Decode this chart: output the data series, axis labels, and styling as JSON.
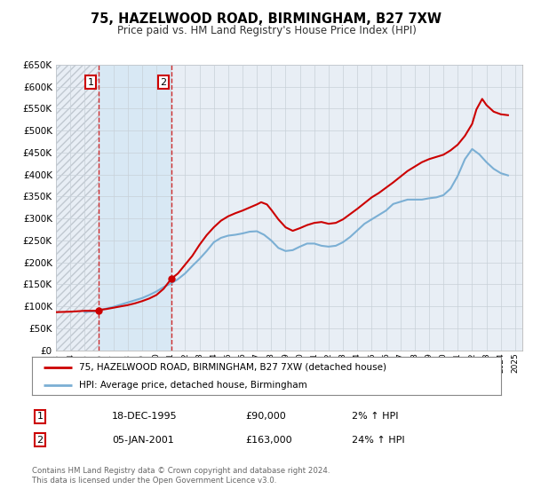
{
  "title": "75, HAZELWOOD ROAD, BIRMINGHAM, B27 7XW",
  "subtitle": "Price paid vs. HM Land Registry's House Price Index (HPI)",
  "property_label": "75, HAZELWOOD ROAD, BIRMINGHAM, B27 7XW (detached house)",
  "hpi_label": "HPI: Average price, detached house, Birmingham",
  "sale1_date": "18-DEC-1995",
  "sale1_price": "£90,000",
  "sale1_hpi": "2% ↑ HPI",
  "sale2_date": "05-JAN-2001",
  "sale2_price": "£163,000",
  "sale2_hpi": "24% ↑ HPI",
  "footnote1": "Contains HM Land Registry data © Crown copyright and database right 2024.",
  "footnote2": "This data is licensed under the Open Government Licence v3.0.",
  "property_color": "#cc0000",
  "hpi_color": "#7bafd4",
  "sale_marker_color": "#cc0000",
  "background_color": "#ffffff",
  "plot_bg_color": "#e8eef5",
  "grid_color": "#c8d0d8",
  "shaded_region_color": "#d8e8f4",
  "hatch_color": "#c0c8d0",
  "ylim": [
    0,
    650000
  ],
  "xlim_start": 1993.0,
  "xlim_end": 2025.5,
  "sale1_x": 1995.96,
  "sale1_y": 90000,
  "sale2_x": 2001.04,
  "sale2_y": 163000,
  "property_x": [
    1993.0,
    1993.5,
    1994.0,
    1994.5,
    1995.0,
    1995.5,
    1995.96,
    1996.0,
    1996.5,
    1997.0,
    1997.5,
    1998.0,
    1998.5,
    1999.0,
    1999.5,
    2000.0,
    2000.5,
    2001.04,
    2001.5,
    2002.0,
    2002.5,
    2003.0,
    2003.5,
    2004.0,
    2004.5,
    2005.0,
    2005.5,
    2006.0,
    2006.5,
    2007.0,
    2007.3,
    2007.7,
    2008.0,
    2008.5,
    2009.0,
    2009.5,
    2010.0,
    2010.5,
    2011.0,
    2011.5,
    2012.0,
    2012.5,
    2013.0,
    2013.5,
    2014.0,
    2014.5,
    2015.0,
    2015.5,
    2016.0,
    2016.5,
    2017.0,
    2017.5,
    2018.0,
    2018.5,
    2019.0,
    2019.5,
    2020.0,
    2020.5,
    2021.0,
    2021.5,
    2022.0,
    2022.3,
    2022.7,
    2023.0,
    2023.5,
    2024.0,
    2024.5
  ],
  "property_y": [
    87000,
    87500,
    88000,
    89000,
    90000,
    90000,
    90000,
    92000,
    94000,
    97000,
    100000,
    103000,
    107000,
    112000,
    118000,
    126000,
    140000,
    163000,
    175000,
    195000,
    215000,
    240000,
    262000,
    280000,
    295000,
    305000,
    312000,
    318000,
    325000,
    332000,
    337000,
    332000,
    320000,
    298000,
    280000,
    272000,
    278000,
    285000,
    290000,
    292000,
    288000,
    290000,
    298000,
    310000,
    322000,
    335000,
    348000,
    358000,
    370000,
    382000,
    395000,
    408000,
    418000,
    428000,
    435000,
    440000,
    445000,
    455000,
    468000,
    488000,
    515000,
    548000,
    572000,
    558000,
    543000,
    537000,
    535000
  ],
  "hpi_x": [
    1995.0,
    1995.3,
    1995.7,
    1996.0,
    1996.5,
    1997.0,
    1997.5,
    1998.0,
    1998.5,
    1999.0,
    1999.5,
    2000.0,
    2000.5,
    2001.0,
    2001.5,
    2002.0,
    2002.5,
    2003.0,
    2003.5,
    2004.0,
    2004.5,
    2005.0,
    2005.5,
    2006.0,
    2006.5,
    2007.0,
    2007.5,
    2008.0,
    2008.5,
    2009.0,
    2009.5,
    2010.0,
    2010.5,
    2011.0,
    2011.5,
    2012.0,
    2012.5,
    2013.0,
    2013.5,
    2014.0,
    2014.5,
    2015.0,
    2015.5,
    2016.0,
    2016.5,
    2017.0,
    2017.5,
    2018.0,
    2018.5,
    2019.0,
    2019.5,
    2020.0,
    2020.5,
    2021.0,
    2021.5,
    2022.0,
    2022.5,
    2023.0,
    2023.5,
    2024.0,
    2024.5
  ],
  "hpi_y": [
    87000,
    88000,
    89000,
    91000,
    95000,
    99000,
    104000,
    109000,
    114000,
    119000,
    126000,
    134000,
    144000,
    152000,
    162000,
    175000,
    192000,
    208000,
    226000,
    246000,
    256000,
    261000,
    263000,
    266000,
    270000,
    271000,
    263000,
    250000,
    233000,
    226000,
    228000,
    236000,
    243000,
    243000,
    238000,
    236000,
    238000,
    246000,
    258000,
    273000,
    288000,
    298000,
    308000,
    318000,
    333000,
    338000,
    343000,
    343000,
    343000,
    346000,
    348000,
    353000,
    368000,
    397000,
    435000,
    458000,
    446000,
    428000,
    413000,
    403000,
    398000
  ]
}
